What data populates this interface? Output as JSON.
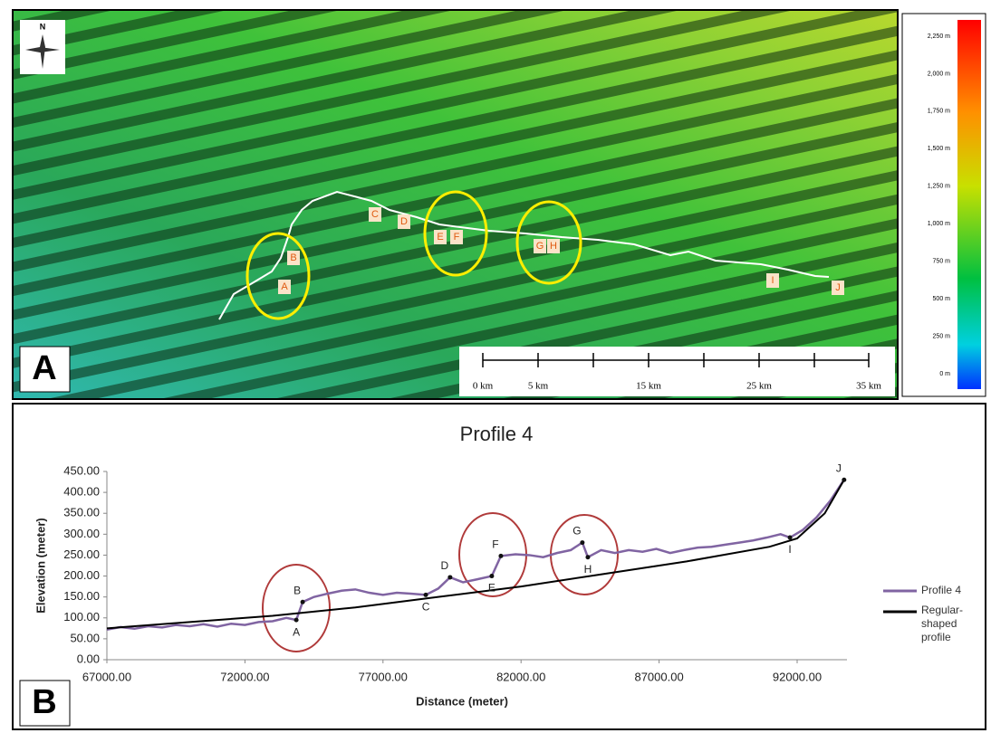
{
  "panels": [
    "A",
    "B"
  ],
  "map": {
    "north": "N",
    "points": [
      "A",
      "B",
      "C",
      "D",
      "E",
      "F",
      "G",
      "H",
      "I",
      "J"
    ],
    "scale_labels": [
      "0 km",
      "5 km",
      "15 km",
      "25 km",
      "35 km"
    ],
    "colorbar_labels": [
      "2,250 m",
      "2,000 m",
      "1,750 m",
      "1,500 m",
      "1,250 m",
      "1,000 m",
      "750 m",
      "500 m",
      "250 m",
      "0 m"
    ]
  },
  "chart_data": {
    "type": "line",
    "title": "Profile 4",
    "x_label": "Distance (meter)",
    "y_label": "Elevation (meter)",
    "xlim": [
      67000,
      93700
    ],
    "ylim": [
      0,
      450
    ],
    "xticks": [
      {
        "value": 67000,
        "label": "67000.00"
      },
      {
        "value": 72000,
        "label": "72000.00"
      },
      {
        "value": 77000,
        "label": "77000.00"
      },
      {
        "value": 82000,
        "label": "82000.00"
      },
      {
        "value": 87000,
        "label": "87000.00"
      },
      {
        "value": 92000,
        "label": "92000.00"
      }
    ],
    "yticks": [
      {
        "value": 0,
        "label": "0.00"
      },
      {
        "value": 50,
        "label": "50.00"
      },
      {
        "value": 100,
        "label": "100.00"
      },
      {
        "value": 150,
        "label": "150.00"
      },
      {
        "value": 200,
        "label": "200.00"
      },
      {
        "value": 250,
        "label": "250.00"
      },
      {
        "value": 300,
        "label": "300.00"
      },
      {
        "value": 350,
        "label": "350.00"
      },
      {
        "value": 400,
        "label": "400.00"
      },
      {
        "value": 450,
        "label": "450.00"
      }
    ],
    "series": [
      {
        "name": "Profile 4",
        "color": "#8064a2",
        "x": [
          67000,
          67500,
          68000,
          68500,
          69000,
          69500,
          70000,
          70500,
          71000,
          71500,
          72000,
          72500,
          73000,
          73500,
          73860,
          74090,
          74500,
          75000,
          75500,
          76000,
          76500,
          77000,
          77500,
          78000,
          78550,
          79000,
          79430,
          79900,
          80400,
          80940,
          81270,
          81800,
          82300,
          82800,
          83300,
          83800,
          84220,
          84420,
          84900,
          85400,
          85900,
          86400,
          86900,
          87400,
          87900,
          88400,
          88900,
          89400,
          89900,
          90400,
          90900,
          91400,
          91740,
          92200,
          92700,
          93200,
          93700
        ],
        "values": [
          72,
          78,
          74,
          80,
          77,
          83,
          80,
          85,
          79,
          86,
          83,
          90,
          92,
          100,
          95,
          138,
          150,
          158,
          165,
          168,
          160,
          155,
          160,
          158,
          155,
          170,
          197,
          185,
          192,
          200,
          248,
          252,
          250,
          245,
          255,
          262,
          280,
          245,
          262,
          255,
          262,
          258,
          265,
          255,
          262,
          268,
          270,
          275,
          280,
          285,
          292,
          300,
          292,
          310,
          340,
          380,
          430
        ]
      },
      {
        "name": "Regular-shaped profile",
        "color": "#000000",
        "x": [
          67000,
          70000,
          73000,
          76000,
          79000,
          82000,
          85000,
          88000,
          91000,
          92000,
          93000,
          93700
        ],
        "values": [
          75,
          90,
          105,
          125,
          150,
          175,
          205,
          235,
          270,
          290,
          350,
          430
        ]
      }
    ],
    "annotations": [
      {
        "label": "A",
        "x": 73860,
        "y": 95
      },
      {
        "label": "B",
        "x": 74090,
        "y": 138
      },
      {
        "label": "C",
        "x": 78550,
        "y": 155
      },
      {
        "label": "D",
        "x": 79430,
        "y": 197
      },
      {
        "label": "E",
        "x": 80940,
        "y": 200
      },
      {
        "label": "F",
        "x": 81270,
        "y": 248
      },
      {
        "label": "G",
        "x": 84220,
        "y": 280
      },
      {
        "label": "H",
        "x": 84420,
        "y": 245
      },
      {
        "label": "I",
        "x": 91740,
        "y": 292
      },
      {
        "label": "J",
        "x": 93700,
        "y": 430
      }
    ]
  }
}
